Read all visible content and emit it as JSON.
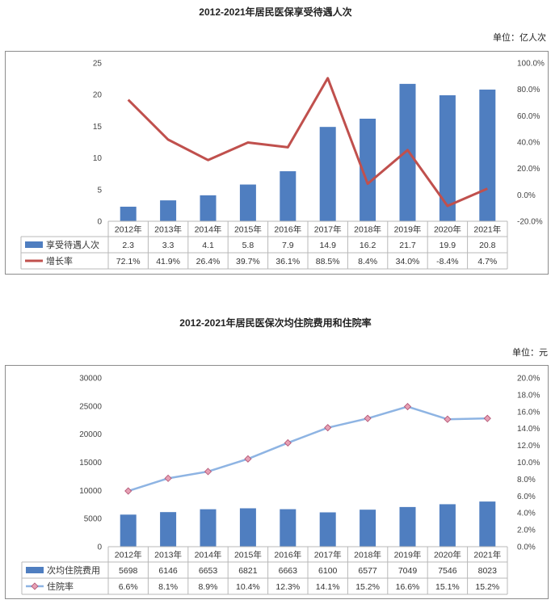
{
  "chart_data": [
    {
      "type": "bar+line",
      "title": "2012-2021年居民医保享受待遇人次",
      "unit": "单位：亿人次",
      "categories": [
        "2012年",
        "2013年",
        "2014年",
        "2015年",
        "2016年",
        "2017年",
        "2018年",
        "2019年",
        "2020年",
        "2021年"
      ],
      "series": [
        {
          "name": "享受待遇人次",
          "kind": "bar",
          "axis": "left",
          "color": "#4f7ec0",
          "values": [
            2.3,
            3.3,
            4.1,
            5.8,
            7.9,
            14.9,
            16.2,
            21.7,
            19.9,
            20.8
          ],
          "labels": [
            "2.3",
            "3.3",
            "4.1",
            "5.8",
            "7.9",
            "14.9",
            "16.2",
            "21.7",
            "19.9",
            "20.8"
          ]
        },
        {
          "name": "增长率",
          "kind": "line",
          "axis": "right",
          "color": "#c0504d",
          "values": [
            72.1,
            41.9,
            26.4,
            39.7,
            36.1,
            88.5,
            8.4,
            34.0,
            -8.4,
            4.7
          ],
          "labels": [
            "72.1%",
            "41.9%",
            "26.4%",
            "39.7%",
            "36.1%",
            "88.5%",
            "8.4%",
            "34.0%",
            "-8.4%",
            "4.7%"
          ]
        }
      ],
      "ylim_left": [
        0,
        25
      ],
      "yticks_left": [
        "0",
        "5",
        "10",
        "15",
        "20",
        "25"
      ],
      "ylim_right": [
        -20,
        100
      ],
      "yticks_right": [
        "-20.0%",
        "0.0%",
        "20.0%",
        "40.0%",
        "60.0%",
        "80.0%",
        "100.0%"
      ],
      "data_table": true
    },
    {
      "type": "bar+line",
      "title": "2012-2021年居民医保次均住院费用和住院率",
      "unit": "单位：元",
      "categories": [
        "2012年",
        "2013年",
        "2014年",
        "2015年",
        "2016年",
        "2017年",
        "2018年",
        "2019年",
        "2020年",
        "2021年"
      ],
      "series": [
        {
          "name": "次均住院费用",
          "kind": "bar",
          "axis": "left",
          "color": "#4f7ec0",
          "values": [
            5698,
            6146,
            6653,
            6821,
            6663,
            6100,
            6577,
            7049,
            7546,
            8023
          ],
          "labels": [
            "5698",
            "6146",
            "6653",
            "6821",
            "6663",
            "6100",
            "6577",
            "7049",
            "7546",
            "8023"
          ]
        },
        {
          "name": "住院率",
          "kind": "line",
          "axis": "right",
          "color": "#8eb4e3",
          "marker": "diamond",
          "marker_color": "#e6a0b4",
          "values": [
            6.6,
            8.1,
            8.9,
            10.4,
            12.3,
            14.1,
            15.2,
            16.6,
            15.1,
            15.2
          ],
          "labels": [
            "6.6%",
            "8.1%",
            "8.9%",
            "10.4%",
            "12.3%",
            "14.1%",
            "15.2%",
            "16.6%",
            "15.1%",
            "15.2%"
          ]
        }
      ],
      "ylim_left": [
        0,
        30000
      ],
      "yticks_left": [
        "0",
        "5000",
        "10000",
        "15000",
        "20000",
        "25000",
        "30000"
      ],
      "ylim_right": [
        0,
        20
      ],
      "yticks_right": [
        "0.0%",
        "2.0%",
        "4.0%",
        "6.0%",
        "8.0%",
        "10.0%",
        "12.0%",
        "14.0%",
        "16.0%",
        "18.0%",
        "20.0%"
      ],
      "data_table": true
    }
  ]
}
